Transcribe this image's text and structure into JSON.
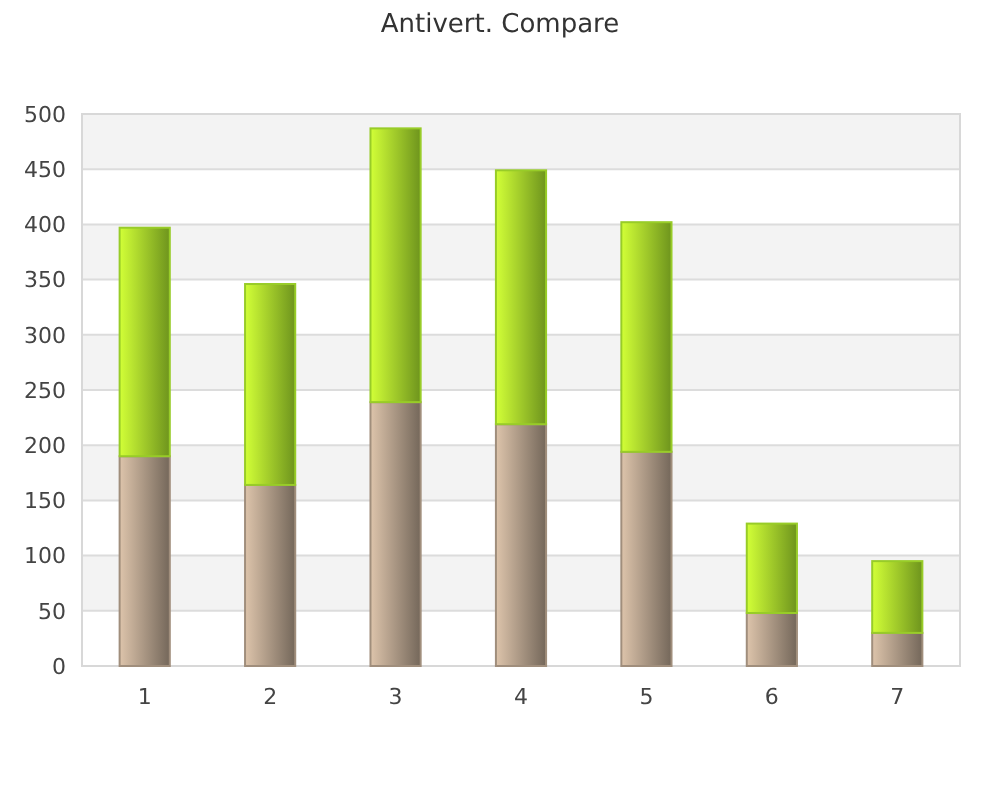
{
  "chart_data": {
    "type": "bar",
    "title": "Antivert. Compare",
    "categories": [
      "1",
      "2",
      "3",
      "4",
      "5",
      "6",
      "7"
    ],
    "stacked": true,
    "series": [
      {
        "color": "#a08e7c",
        "values": [
          190,
          164,
          239,
          219,
          194,
          48,
          30
        ]
      },
      {
        "color": "#98cc28",
        "values": [
          207,
          182,
          248,
          230,
          208,
          81,
          65
        ]
      }
    ],
    "ylim": [
      0,
      500
    ],
    "yticks": [
      0,
      50,
      100,
      150,
      200,
      250,
      300,
      350,
      400,
      450,
      500
    ],
    "grid": "y"
  }
}
